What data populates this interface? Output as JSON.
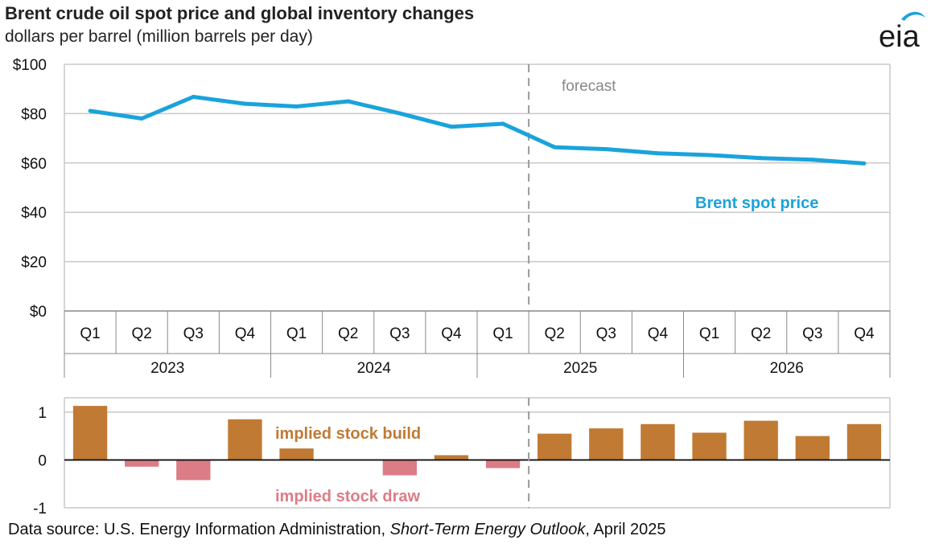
{
  "header": {
    "title": "Brent crude oil spot price and global inventory changes",
    "subtitle": "dollars per barrel (million barrels per day)"
  },
  "logo": {
    "text": "eia",
    "icon": "eia-logo"
  },
  "footer": {
    "source_prefix": "Data source: U.S. Energy Information Administration, ",
    "source_title": "Short-Term Energy Outlook",
    "source_suffix": ", April 2025"
  },
  "colors": {
    "price_line": "#1aa3dc",
    "build_bar": "#c07a33",
    "draw_bar": "#dc7c86",
    "forecast_label": "#888888",
    "grid": "#c8c8c8",
    "divider": "#9a9a9a"
  },
  "chart_data": [
    {
      "type": "line",
      "categories": [
        "Q1",
        "Q2",
        "Q3",
        "Q4",
        "Q1",
        "Q2",
        "Q3",
        "Q4",
        "Q1",
        "Q2",
        "Q3",
        "Q4",
        "Q1",
        "Q2",
        "Q3",
        "Q4"
      ],
      "groups": [
        {
          "label": "2023",
          "span": 4
        },
        {
          "label": "2024",
          "span": 4
        },
        {
          "label": "2025",
          "span": 4
        },
        {
          "label": "2026",
          "span": 4
        }
      ],
      "series": [
        {
          "name": "Brent spot price",
          "values": [
            81.1,
            78.0,
            86.8,
            84.0,
            82.9,
            85.0,
            80.1,
            74.7,
            75.9,
            66.4,
            65.6,
            63.9,
            63.2,
            62.0,
            61.3,
            59.8
          ]
        }
      ],
      "y_ticks": [
        "$0",
        "$20",
        "$40",
        "$60",
        "$80",
        "$100"
      ],
      "ylim": [
        0,
        100
      ],
      "annotations": {
        "forecast": "forecast",
        "series_label": "Brent spot price"
      },
      "forecast_start_index": 9,
      "grid": true
    },
    {
      "type": "bar",
      "categories": [
        "Q1",
        "Q2",
        "Q3",
        "Q4",
        "Q1",
        "Q2",
        "Q3",
        "Q4",
        "Q1",
        "Q2",
        "Q3",
        "Q4",
        "Q1",
        "Q2",
        "Q3",
        "Q4"
      ],
      "series": [
        {
          "name": "implied stock build / draw",
          "values": [
            1.13,
            -0.14,
            -0.42,
            0.85,
            0.24,
            0.0,
            -0.32,
            0.1,
            -0.17,
            0.55,
            0.66,
            0.75,
            0.57,
            0.82,
            0.5,
            0.75
          ]
        }
      ],
      "y_ticks": [
        "-1",
        "0",
        "1"
      ],
      "ylim": [
        -1,
        1.3
      ],
      "annotations": {
        "build": "implied stock  build",
        "draw": "implied stock draw"
      },
      "forecast_start_index": 9,
      "grid": true
    }
  ]
}
